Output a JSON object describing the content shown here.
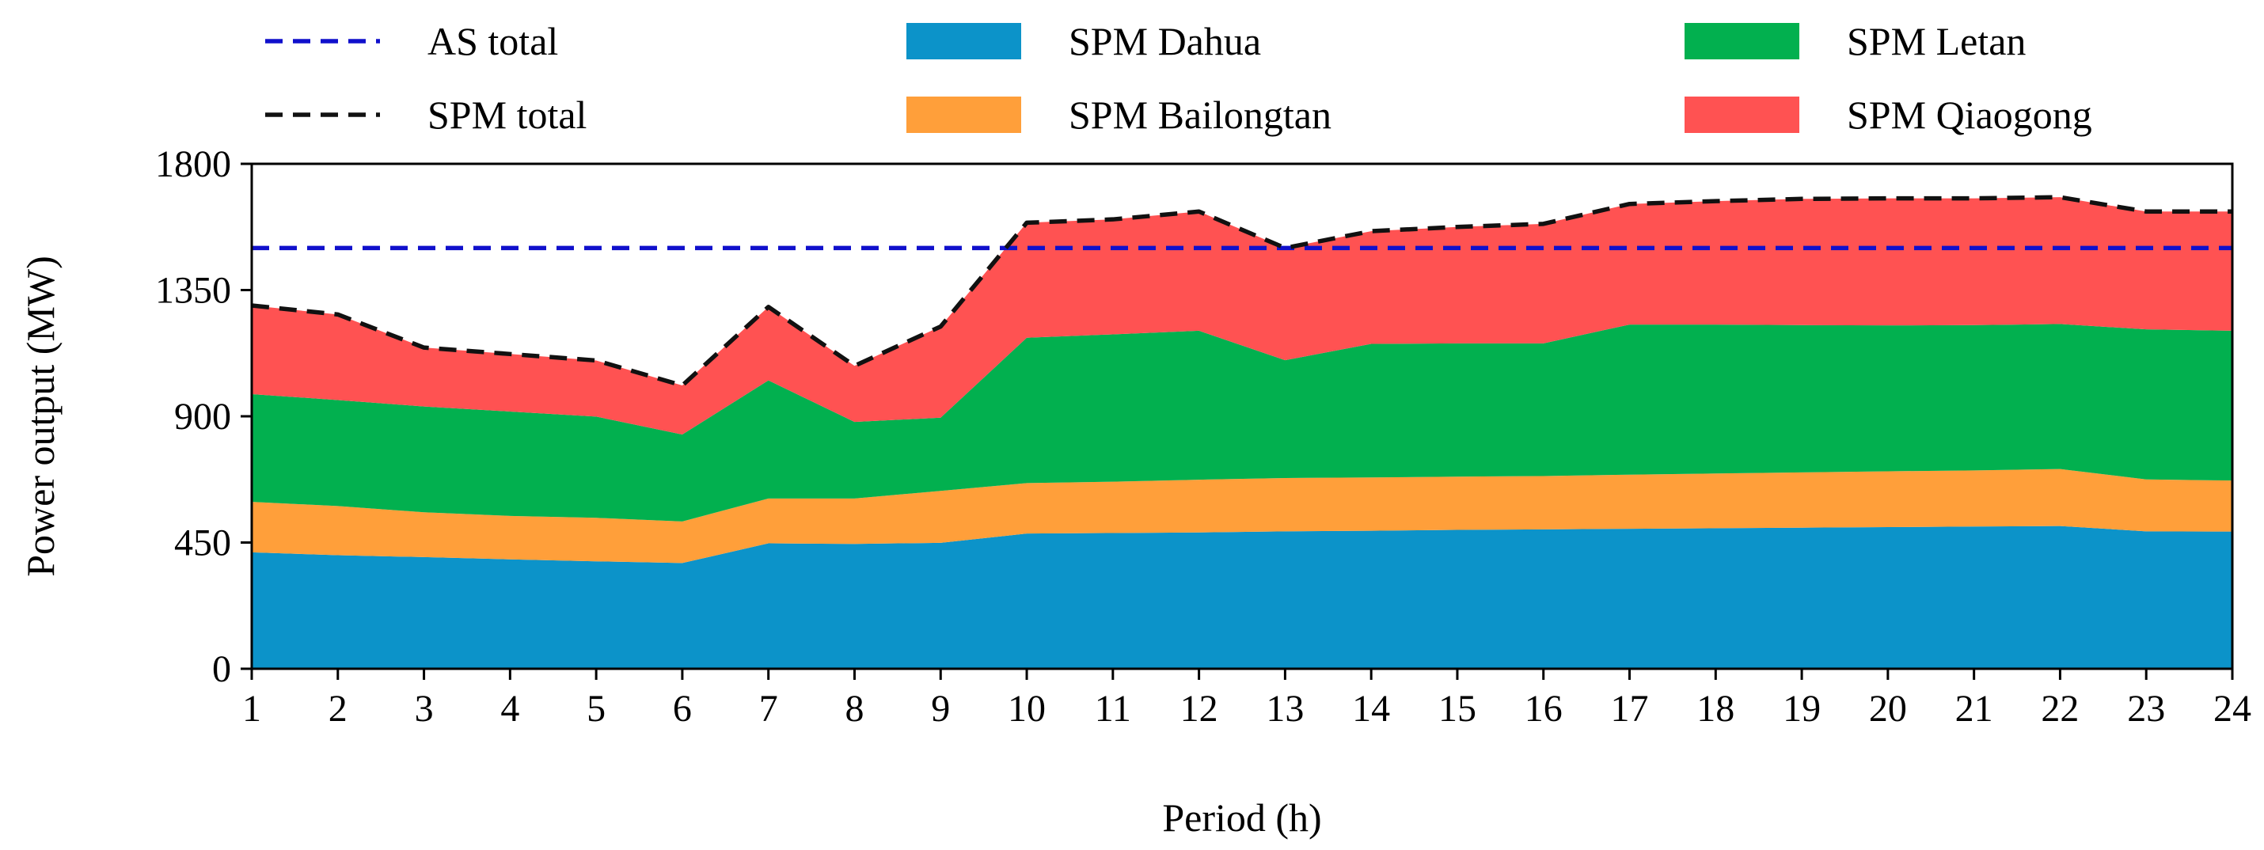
{
  "chart_data": {
    "type": "area",
    "stacked": true,
    "title": "",
    "xlabel": "Period (h)",
    "ylabel": "Power output (MW)",
    "x": [
      1,
      2,
      3,
      4,
      5,
      6,
      7,
      8,
      9,
      10,
      11,
      12,
      13,
      14,
      15,
      16,
      17,
      18,
      19,
      20,
      21,
      22,
      23,
      24
    ],
    "xlim": [
      1,
      24
    ],
    "ylim": [
      0,
      1800
    ],
    "x_ticks": [
      "1",
      "2",
      "3",
      "4",
      "5",
      "6",
      "7",
      "8",
      "9",
      "10",
      "11",
      "12",
      "13",
      "14",
      "15",
      "16",
      "17",
      "18",
      "19",
      "20",
      "21",
      "22",
      "23",
      "24"
    ],
    "y_ticks": [
      "0",
      "450",
      "900",
      "1350",
      "1800"
    ],
    "y_tick_values": [
      0,
      450,
      900,
      1350,
      1800
    ],
    "grid": false,
    "legend_position": "top",
    "series": [
      {
        "name": "SPM Dahua",
        "color": "#0C93C9",
        "values": [
          415,
          405,
          398,
          390,
          383,
          377,
          447,
          445,
          449,
          482,
          484,
          486,
          490,
          492,
          495,
          497,
          499,
          501,
          503,
          505,
          507,
          509,
          490,
          489
        ]
      },
      {
        "name": "SPM Bailongtan",
        "color": "#FF9F3A",
        "values": [
          180,
          175,
          160,
          155,
          155,
          148,
          160,
          162,
          185,
          180,
          183,
          188,
          190,
          190,
          190,
          190,
          193,
          195,
          197,
          199,
          200,
          203,
          185,
          182
        ]
      },
      {
        "name": "SPM Letan",
        "color": "#02B04F",
        "values": [
          384,
          378,
          377,
          372,
          361,
          310,
          421,
          273,
          261,
          518,
          525,
          531,
          420,
          476,
          475,
          473,
          535,
          531,
          525,
          520,
          518,
          517,
          535,
          534
        ]
      },
      {
        "name": "SPM Qiaogong",
        "color": "#FF5252",
        "values": [
          316,
          305,
          210,
          205,
          200,
          175,
          262,
          200,
          325,
          410,
          410,
          425,
          400,
          402,
          415,
          426,
          430,
          440,
          450,
          453,
          452,
          452,
          420,
          425
        ]
      }
    ],
    "lines": [
      {
        "name": "AS total",
        "color": "#1010CC",
        "style": "dashed",
        "values": [
          1500,
          1500,
          1500,
          1500,
          1500,
          1500,
          1500,
          1500,
          1500,
          1500,
          1500,
          1500,
          1500,
          1500,
          1500,
          1500,
          1500,
          1500,
          1500,
          1500,
          1500,
          1500,
          1500,
          1500
        ]
      },
      {
        "name": "SPM total",
        "color": "#111111",
        "style": "dashed",
        "values": [
          1295,
          1263,
          1145,
          1122,
          1099,
          1010,
          1290,
          1080,
          1220,
          1590,
          1602,
          1630,
          1500,
          1560,
          1575,
          1586,
          1657,
          1667,
          1675,
          1677,
          1677,
          1681,
          1630,
          1630
        ]
      }
    ],
    "legend": [
      {
        "name": "AS total",
        "kind": "line",
        "color": "#1010CC"
      },
      {
        "name": "SPM Dahua",
        "kind": "patch",
        "color": "#0C93C9"
      },
      {
        "name": "SPM Letan",
        "kind": "patch",
        "color": "#02B04F"
      },
      {
        "name": "SPM total",
        "kind": "line",
        "color": "#111111"
      },
      {
        "name": "SPM Bailongtan",
        "kind": "patch",
        "color": "#FF9F3A"
      },
      {
        "name": "SPM Qiaogong",
        "kind": "patch",
        "color": "#FF5252"
      }
    ]
  }
}
